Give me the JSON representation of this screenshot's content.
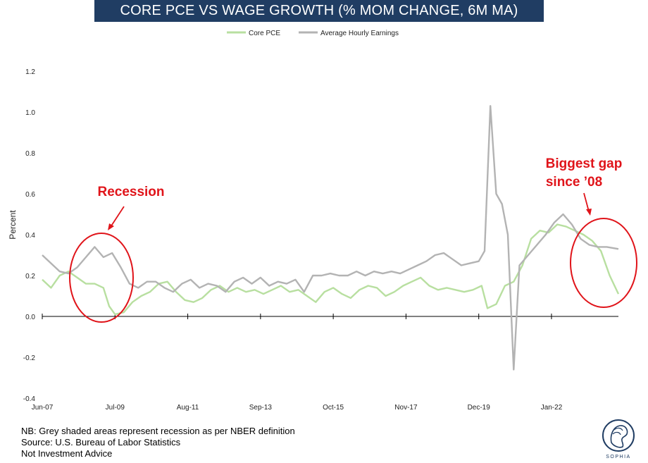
{
  "chart_data": {
    "type": "line",
    "title": "CORE PCE VS WAGE GROWTH (% MOM CHANGE, 6M MA)",
    "ylabel": "Percent",
    "xlabel": "",
    "ylim": [
      -0.4,
      1.2
    ],
    "yticks": [
      "1.2",
      "1.0",
      "0.8",
      "0.6",
      "0.4",
      "0.2",
      "0.0",
      "-0.2",
      "-0.4"
    ],
    "xlim": [
      "2007-06",
      "2023-12"
    ],
    "xtick_labels": [
      "Jun-07",
      "Jul-09",
      "Aug-11",
      "Sep-13",
      "Oct-15",
      "Nov-17",
      "Dec-19",
      "Jan-22"
    ],
    "legend_position": "top-center",
    "grid": false,
    "series": [
      {
        "name": "Core PCE",
        "color": "#b8dfa0",
        "points": [
          [
            "2007-06",
            0.18
          ],
          [
            "2007-09",
            0.14
          ],
          [
            "2007-12",
            0.2
          ],
          [
            "2008-03",
            0.22
          ],
          [
            "2008-06",
            0.19
          ],
          [
            "2008-09",
            0.16
          ],
          [
            "2008-12",
            0.16
          ],
          [
            "2009-03",
            0.14
          ],
          [
            "2009-05",
            0.05
          ],
          [
            "2009-07",
            0.01
          ],
          [
            "2009-10",
            0.02
          ],
          [
            "2010-01",
            0.07
          ],
          [
            "2010-04",
            0.1
          ],
          [
            "2010-07",
            0.12
          ],
          [
            "2010-10",
            0.16
          ],
          [
            "2011-01",
            0.17
          ],
          [
            "2011-04",
            0.12
          ],
          [
            "2011-07",
            0.08
          ],
          [
            "2011-10",
            0.07
          ],
          [
            "2012-01",
            0.09
          ],
          [
            "2012-04",
            0.13
          ],
          [
            "2012-07",
            0.15
          ],
          [
            "2012-10",
            0.12
          ],
          [
            "2013-01",
            0.14
          ],
          [
            "2013-04",
            0.12
          ],
          [
            "2013-07",
            0.13
          ],
          [
            "2013-10",
            0.11
          ],
          [
            "2014-01",
            0.13
          ],
          [
            "2014-04",
            0.15
          ],
          [
            "2014-07",
            0.12
          ],
          [
            "2014-10",
            0.13
          ],
          [
            "2015-01",
            0.1
          ],
          [
            "2015-04",
            0.07
          ],
          [
            "2015-07",
            0.12
          ],
          [
            "2015-10",
            0.14
          ],
          [
            "2016-01",
            0.11
          ],
          [
            "2016-04",
            0.09
          ],
          [
            "2016-07",
            0.13
          ],
          [
            "2016-10",
            0.15
          ],
          [
            "2017-01",
            0.14
          ],
          [
            "2017-04",
            0.1
          ],
          [
            "2017-07",
            0.12
          ],
          [
            "2017-10",
            0.15
          ],
          [
            "2018-01",
            0.17
          ],
          [
            "2018-04",
            0.19
          ],
          [
            "2018-07",
            0.15
          ],
          [
            "2018-10",
            0.13
          ],
          [
            "2019-01",
            0.14
          ],
          [
            "2019-04",
            0.13
          ],
          [
            "2019-07",
            0.12
          ],
          [
            "2019-10",
            0.13
          ],
          [
            "2020-01",
            0.15
          ],
          [
            "2020-03",
            0.04
          ],
          [
            "2020-06",
            0.06
          ],
          [
            "2020-09",
            0.15
          ],
          [
            "2020-12",
            0.17
          ],
          [
            "2021-03",
            0.25
          ],
          [
            "2021-06",
            0.38
          ],
          [
            "2021-09",
            0.42
          ],
          [
            "2021-12",
            0.41
          ],
          [
            "2022-03",
            0.45
          ],
          [
            "2022-06",
            0.44
          ],
          [
            "2022-09",
            0.42
          ],
          [
            "2022-12",
            0.4
          ],
          [
            "2023-03",
            0.37
          ],
          [
            "2023-06",
            0.32
          ],
          [
            "2023-09",
            0.2
          ],
          [
            "2023-12",
            0.11
          ]
        ]
      },
      {
        "name": "Average Hourly Earnings",
        "color": "#b3b3b3",
        "points": [
          [
            "2007-06",
            0.3
          ],
          [
            "2007-09",
            0.26
          ],
          [
            "2007-12",
            0.22
          ],
          [
            "2008-03",
            0.21
          ],
          [
            "2008-06",
            0.24
          ],
          [
            "2008-09",
            0.29
          ],
          [
            "2008-12",
            0.34
          ],
          [
            "2009-03",
            0.29
          ],
          [
            "2009-06",
            0.31
          ],
          [
            "2009-09",
            0.24
          ],
          [
            "2009-12",
            0.16
          ],
          [
            "2010-03",
            0.14
          ],
          [
            "2010-06",
            0.17
          ],
          [
            "2010-09",
            0.17
          ],
          [
            "2010-12",
            0.14
          ],
          [
            "2011-03",
            0.12
          ],
          [
            "2011-06",
            0.16
          ],
          [
            "2011-09",
            0.18
          ],
          [
            "2011-12",
            0.14
          ],
          [
            "2012-03",
            0.16
          ],
          [
            "2012-06",
            0.15
          ],
          [
            "2012-09",
            0.12
          ],
          [
            "2012-12",
            0.17
          ],
          [
            "2013-03",
            0.19
          ],
          [
            "2013-06",
            0.16
          ],
          [
            "2013-09",
            0.19
          ],
          [
            "2013-12",
            0.15
          ],
          [
            "2014-03",
            0.17
          ],
          [
            "2014-06",
            0.16
          ],
          [
            "2014-09",
            0.18
          ],
          [
            "2014-12",
            0.12
          ],
          [
            "2015-03",
            0.2
          ],
          [
            "2015-06",
            0.2
          ],
          [
            "2015-09",
            0.21
          ],
          [
            "2015-12",
            0.2
          ],
          [
            "2016-03",
            0.2
          ],
          [
            "2016-06",
            0.22
          ],
          [
            "2016-09",
            0.2
          ],
          [
            "2016-12",
            0.22
          ],
          [
            "2017-03",
            0.21
          ],
          [
            "2017-06",
            0.22
          ],
          [
            "2017-09",
            0.21
          ],
          [
            "2017-12",
            0.23
          ],
          [
            "2018-03",
            0.25
          ],
          [
            "2018-06",
            0.27
          ],
          [
            "2018-09",
            0.3
          ],
          [
            "2018-12",
            0.31
          ],
          [
            "2019-03",
            0.28
          ],
          [
            "2019-06",
            0.25
          ],
          [
            "2019-09",
            0.26
          ],
          [
            "2019-12",
            0.27
          ],
          [
            "2020-02",
            0.32
          ],
          [
            "2020-04",
            1.03
          ],
          [
            "2020-06",
            0.6
          ],
          [
            "2020-08",
            0.55
          ],
          [
            "2020-10",
            0.4
          ],
          [
            "2020-12",
            -0.26
          ],
          [
            "2021-02",
            0.25
          ],
          [
            "2021-05",
            0.3
          ],
          [
            "2021-08",
            0.35
          ],
          [
            "2021-11",
            0.4
          ],
          [
            "2022-02",
            0.46
          ],
          [
            "2022-05",
            0.5
          ],
          [
            "2022-08",
            0.45
          ],
          [
            "2022-11",
            0.38
          ],
          [
            "2023-02",
            0.35
          ],
          [
            "2023-05",
            0.34
          ],
          [
            "2023-08",
            0.34
          ],
          [
            "2023-12",
            0.33
          ]
        ]
      }
    ],
    "annotations": [
      {
        "text": "Recession",
        "color": "#e0141a"
      },
      {
        "text": "Biggest gap",
        "color": "#e0141a"
      },
      {
        "text": "since ’08",
        "color": "#e0141a"
      }
    ]
  },
  "footer": {
    "line1": "NB: Grey shaded areas represent recession as per NBER definition",
    "line2": "Source: U.S. Bureau of Labor Statistics",
    "line3": "Not Investment Advice"
  },
  "logo": {
    "icon": "sophia-head-logo",
    "text": "SOPHIA"
  }
}
